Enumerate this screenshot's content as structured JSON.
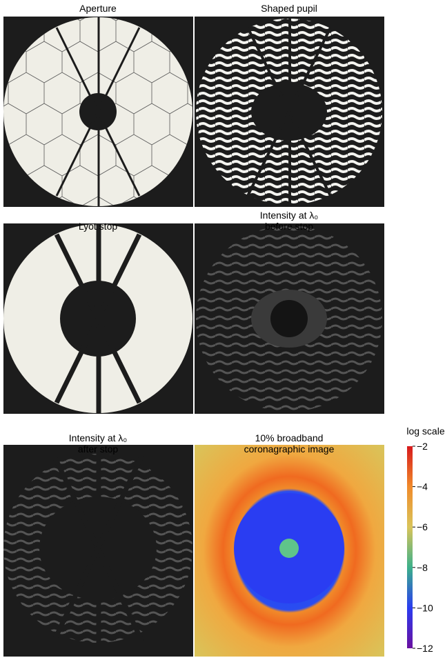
{
  "panels": [
    {
      "title": [
        "Aperture"
      ]
    },
    {
      "title": [
        "Shaped pupil"
      ]
    },
    {
      "title": [
        "Lyot stop"
      ]
    },
    {
      "title": [
        "Intensity at λ₀",
        "before stop"
      ]
    },
    {
      "title": [
        "Intensity at λ₀",
        "after stop"
      ]
    },
    {
      "title": [
        "10% broadband",
        "coronagraphic image"
      ]
    }
  ],
  "colorbar": {
    "label": "log scale",
    "lim": [
      -12,
      -2
    ],
    "ticks": [
      {
        "value": -2,
        "label": "−2"
      },
      {
        "value": -4,
        "label": "−4"
      },
      {
        "value": -6,
        "label": "−6"
      },
      {
        "value": -8,
        "label": "−8"
      },
      {
        "value": -10,
        "label": "−10"
      },
      {
        "value": -12,
        "label": "−12"
      }
    ]
  }
}
